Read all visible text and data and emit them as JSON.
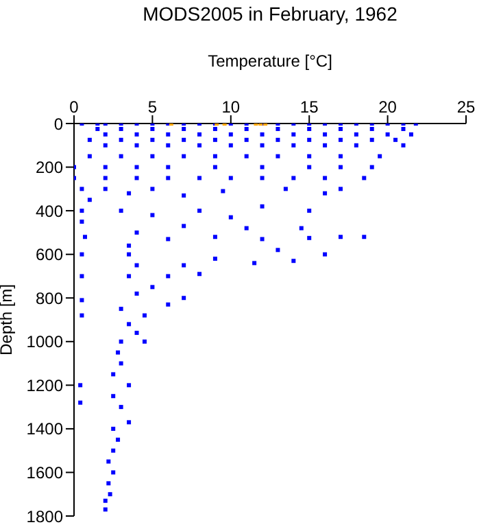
{
  "chart_data": {
    "type": "scatter",
    "title": "MODS2005 in February, 1962",
    "xlabel": "Temperature [°C]",
    "ylabel": "Depth [m]",
    "xlim": [
      0,
      25
    ],
    "xticks": [
      0,
      5,
      10,
      15,
      20,
      25
    ],
    "ylim": [
      1800,
      0
    ],
    "yticks": [
      0,
      200,
      400,
      600,
      800,
      1000,
      1200,
      1400,
      1600,
      1800
    ],
    "marker": "square",
    "series": [
      {
        "color": "#0000ff",
        "x": [
          0.5,
          1.5,
          2,
          3,
          4,
          5,
          6,
          7,
          8,
          9,
          10,
          11,
          12,
          13,
          14,
          15,
          16,
          17,
          18,
          19,
          20,
          21,
          21.8,
          1.5,
          3,
          5,
          7,
          9,
          11,
          13,
          15,
          17,
          19,
          21,
          2,
          4,
          6,
          8,
          10,
          12,
          14,
          16,
          18,
          20,
          21.5,
          1,
          3,
          5,
          7,
          9,
          11,
          13,
          15,
          17,
          19,
          20.5,
          2,
          4,
          6,
          8,
          10,
          12,
          14,
          16,
          18,
          21,
          1,
          3,
          5,
          7,
          9,
          11,
          13,
          15,
          17,
          19.5,
          0,
          2,
          4,
          6,
          9,
          12,
          15,
          17,
          19,
          0,
          2,
          4,
          6,
          8,
          10,
          12,
          14,
          16,
          18.5,
          0.5,
          1,
          0.5,
          0.5,
          0.7,
          0.5,
          0.5,
          0.5,
          0.5,
          0.4,
          0.4,
          2,
          3.5,
          5,
          7,
          9.5,
          13.5,
          16,
          17,
          8,
          10,
          12,
          15,
          14.5,
          11,
          7,
          5,
          3,
          4,
          6,
          9,
          12,
          15,
          17,
          18.5,
          13,
          16,
          11.5,
          14,
          9,
          7,
          6,
          8,
          5,
          3.5,
          3.5,
          4,
          3.5,
          4,
          3,
          4.5,
          6,
          7,
          3.5,
          4,
          3,
          4.5,
          2.8,
          3,
          2.5,
          3.5,
          2.5,
          3,
          3.5,
          2.5,
          2.8,
          2.5,
          2.2,
          2.5,
          2.2,
          2.3,
          2,
          2
        ],
        "values": [
          0,
          0,
          0,
          0,
          0,
          0,
          0,
          0,
          0,
          0,
          0,
          0,
          0,
          0,
          0,
          0,
          0,
          0,
          0,
          0,
          0,
          0,
          0,
          25,
          25,
          25,
          25,
          25,
          25,
          25,
          25,
          25,
          25,
          25,
          50,
          50,
          50,
          50,
          50,
          50,
          50,
          50,
          50,
          50,
          50,
          75,
          75,
          75,
          75,
          75,
          75,
          75,
          75,
          75,
          75,
          75,
          100,
          100,
          100,
          100,
          100,
          100,
          100,
          100,
          100,
          100,
          150,
          150,
          150,
          150,
          150,
          150,
          150,
          150,
          150,
          150,
          200,
          200,
          200,
          200,
          200,
          200,
          200,
          200,
          200,
          250,
          250,
          250,
          250,
          250,
          250,
          250,
          250,
          250,
          250,
          300,
          350,
          400,
          450,
          520,
          600,
          700,
          810,
          880,
          1200,
          1280,
          300,
          320,
          300,
          330,
          310,
          300,
          320,
          300,
          400,
          430,
          380,
          400,
          480,
          480,
          470,
          420,
          400,
          500,
          530,
          520,
          530,
          525,
          520,
          520,
          580,
          600,
          640,
          630,
          620,
          650,
          700,
          690,
          750,
          560,
          600,
          650,
          700,
          780,
          850,
          880,
          830,
          800,
          920,
          960,
          1000,
          1000,
          1050,
          1100,
          1150,
          1200,
          1250,
          1300,
          1370,
          1400,
          1450,
          1500,
          1550,
          1600,
          1650,
          1700,
          1730,
          1770
        ]
      },
      {
        "color": "#ffa500",
        "x": [
          6.2,
          9.1,
          9.6,
          11.6,
          11.9,
          12.2
        ],
        "values": [
          0,
          0,
          0,
          0,
          0,
          0
        ]
      }
    ]
  }
}
